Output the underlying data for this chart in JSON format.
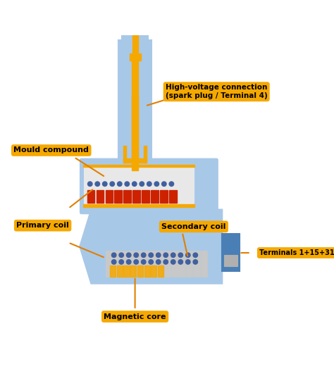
{
  "bg_color": "#ffffff",
  "blue_light": "#A8C8E8",
  "blue_dark": "#4A7FB5",
  "blue_outline": "#3A6090",
  "orange": "#F5A800",
  "orange_dark": "#E08000",
  "red_coil": "#CC2200",
  "gray_core": "#B0B0B0",
  "label_bg": "#F5A800",
  "label_text": "#000000",
  "label_fontsize": 8,
  "label_bold": true,
  "labels": {
    "magnetic_core": "Magnetic core",
    "terminals": "Terminals 1+15+31",
    "primary_coil": "Primary coil",
    "secondary_coil": "Secondary coil",
    "mould_compound": "Mould compound",
    "hv_connection": "High-voltage connection\n(spark plug / Terminal 4)"
  }
}
